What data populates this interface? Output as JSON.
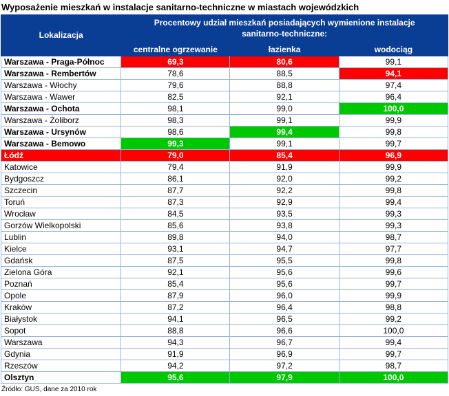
{
  "title": "Wyposażenie mieszkań w instalacje sanitarno-techniczne w miastach wojewódzkich",
  "source_note": "Źródło: GUS, dane za 2010 rok",
  "colors": {
    "header_bg": "#0a3d94",
    "highlight_red": "#ff0000",
    "highlight_green": "#00c800",
    "border": "#95b3d7"
  },
  "table": {
    "location_header": "Lokalizacja",
    "group_header": "Procentowy udział mieszkań posiadających wymienione instalacje sanitarno-techniczne:",
    "columns": [
      "centralne ogrzewanie",
      "łazienka",
      "wodociąg"
    ],
    "rows": [
      {
        "name": "Warszawa - Praga-Północ",
        "bold": true,
        "name_highlight": null,
        "values": [
          "69,3",
          "80,6",
          "99,1"
        ],
        "highlights": [
          "red",
          "red",
          null
        ]
      },
      {
        "name": "Warszawa - Rembertów",
        "bold": true,
        "name_highlight": null,
        "values": [
          "78,6",
          "88,5",
          "94,1"
        ],
        "highlights": [
          null,
          null,
          "red"
        ]
      },
      {
        "name": "Warszawa - Włochy",
        "bold": false,
        "name_highlight": null,
        "values": [
          "79,6",
          "88,8",
          "97,4"
        ],
        "highlights": [
          null,
          null,
          null
        ]
      },
      {
        "name": "Warszawa - Wawer",
        "bold": false,
        "name_highlight": null,
        "values": [
          "82,5",
          "92,1",
          "96,4"
        ],
        "highlights": [
          null,
          null,
          null
        ]
      },
      {
        "name": "Warszawa - Ochota",
        "bold": true,
        "name_highlight": null,
        "values": [
          "98,1",
          "99,0",
          "100,0"
        ],
        "highlights": [
          null,
          null,
          "green"
        ]
      },
      {
        "name": "Warszawa - Żoliborz",
        "bold": false,
        "name_highlight": null,
        "values": [
          "98,3",
          "99,1",
          "99,9"
        ],
        "highlights": [
          null,
          null,
          null
        ]
      },
      {
        "name": "Warszawa - Ursynów",
        "bold": true,
        "name_highlight": null,
        "values": [
          "98,6",
          "99,4",
          "99,8"
        ],
        "highlights": [
          null,
          "green",
          null
        ]
      },
      {
        "name": "Warszawa - Bemowo",
        "bold": true,
        "name_highlight": null,
        "values": [
          "99,3",
          "99,1",
          "99,7"
        ],
        "highlights": [
          "green",
          null,
          null
        ]
      },
      {
        "name": "Łódź",
        "bold": true,
        "name_highlight": "red",
        "values": [
          "79,0",
          "85,4",
          "96,9"
        ],
        "highlights": [
          "red",
          "red",
          "red"
        ]
      },
      {
        "name": "Katowice",
        "bold": false,
        "name_highlight": null,
        "values": [
          "79,4",
          "91,9",
          "99,9"
        ],
        "highlights": [
          null,
          null,
          null
        ]
      },
      {
        "name": "Bydgoszcz",
        "bold": false,
        "name_highlight": null,
        "values": [
          "86,1",
          "92,0",
          "99,2"
        ],
        "highlights": [
          null,
          null,
          null
        ]
      },
      {
        "name": "Szczecin",
        "bold": false,
        "name_highlight": null,
        "values": [
          "87,7",
          "92,2",
          "99,8"
        ],
        "highlights": [
          null,
          null,
          null
        ]
      },
      {
        "name": "Toruń",
        "bold": false,
        "name_highlight": null,
        "values": [
          "87,3",
          "92,9",
          "99,4"
        ],
        "highlights": [
          null,
          null,
          null
        ]
      },
      {
        "name": "Wrocław",
        "bold": false,
        "name_highlight": null,
        "values": [
          "84,5",
          "93,5",
          "99,3"
        ],
        "highlights": [
          null,
          null,
          null
        ]
      },
      {
        "name": "Gorzów Wielkopolski",
        "bold": false,
        "name_highlight": null,
        "values": [
          "85,6",
          "93,8",
          "99,3"
        ],
        "highlights": [
          null,
          null,
          null
        ]
      },
      {
        "name": "Lublin",
        "bold": false,
        "name_highlight": null,
        "values": [
          "89,8",
          "94,0",
          "98,7"
        ],
        "highlights": [
          null,
          null,
          null
        ]
      },
      {
        "name": "Kielce",
        "bold": false,
        "name_highlight": null,
        "values": [
          "93,1",
          "94,7",
          "97,7"
        ],
        "highlights": [
          null,
          null,
          null
        ]
      },
      {
        "name": "Gdańsk",
        "bold": false,
        "name_highlight": null,
        "values": [
          "87,5",
          "95,5",
          "99,8"
        ],
        "highlights": [
          null,
          null,
          null
        ]
      },
      {
        "name": "Zielona Góra",
        "bold": false,
        "name_highlight": null,
        "values": [
          "92,1",
          "95,6",
          "99,6"
        ],
        "highlights": [
          null,
          null,
          null
        ]
      },
      {
        "name": "Poznań",
        "bold": false,
        "name_highlight": null,
        "values": [
          "85,4",
          "95,6",
          "99,7"
        ],
        "highlights": [
          null,
          null,
          null
        ]
      },
      {
        "name": "Opole",
        "bold": false,
        "name_highlight": null,
        "values": [
          "87,9",
          "96,0",
          "99,9"
        ],
        "highlights": [
          null,
          null,
          null
        ]
      },
      {
        "name": "Kraków",
        "bold": false,
        "name_highlight": null,
        "values": [
          "87,2",
          "96,4",
          "98,8"
        ],
        "highlights": [
          null,
          null,
          null
        ]
      },
      {
        "name": "Białystok",
        "bold": false,
        "name_highlight": null,
        "values": [
          "94,1",
          "96,5",
          "99,2"
        ],
        "highlights": [
          null,
          null,
          null
        ]
      },
      {
        "name": "Sopot",
        "bold": false,
        "name_highlight": null,
        "values": [
          "88,8",
          "96,6",
          "100,0"
        ],
        "highlights": [
          null,
          null,
          null
        ]
      },
      {
        "name": "Warszawa",
        "bold": false,
        "name_highlight": null,
        "values": [
          "94,3",
          "96,7",
          "99,4"
        ],
        "highlights": [
          null,
          null,
          null
        ]
      },
      {
        "name": "Gdynia",
        "bold": false,
        "name_highlight": null,
        "values": [
          "91,9",
          "96,9",
          "99,7"
        ],
        "highlights": [
          null,
          null,
          null
        ]
      },
      {
        "name": "Rzeszów",
        "bold": false,
        "name_highlight": null,
        "values": [
          "94,2",
          "97,2",
          "98,7"
        ],
        "highlights": [
          null,
          null,
          null
        ]
      },
      {
        "name": "Olsztyn",
        "bold": true,
        "name_highlight": null,
        "values": [
          "95,6",
          "97,9",
          "100,0"
        ],
        "highlights": [
          "green",
          "green",
          "green"
        ]
      }
    ]
  },
  "chart_data": {
    "type": "table",
    "title": "Wyposażenie mieszkań w instalacje sanitarno-techniczne w miastach wojewódzkich",
    "categories": [
      "Warszawa - Praga-Północ",
      "Warszawa - Rembertów",
      "Warszawa - Włochy",
      "Warszawa - Wawer",
      "Warszawa - Ochota",
      "Warszawa - Żoliborz",
      "Warszawa - Ursynów",
      "Warszawa - Bemowo",
      "Łódź",
      "Katowice",
      "Bydgoszcz",
      "Szczecin",
      "Toruń",
      "Wrocław",
      "Gorzów Wielkopolski",
      "Lublin",
      "Kielce",
      "Gdańsk",
      "Zielona Góra",
      "Poznań",
      "Opole",
      "Kraków",
      "Białystok",
      "Sopot",
      "Warszawa",
      "Gdynia",
      "Rzeszów",
      "Olsztyn"
    ],
    "series": [
      {
        "name": "centralne ogrzewanie",
        "values": [
          69.3,
          78.6,
          79.6,
          82.5,
          98.1,
          98.3,
          98.6,
          99.3,
          79.0,
          79.4,
          86.1,
          87.7,
          87.3,
          84.5,
          85.6,
          89.8,
          93.1,
          87.5,
          92.1,
          85.4,
          87.9,
          87.2,
          94.1,
          88.8,
          94.3,
          91.9,
          94.2,
          95.6
        ]
      },
      {
        "name": "łazienka",
        "values": [
          80.6,
          88.5,
          88.8,
          92.1,
          99.0,
          99.1,
          99.4,
          99.1,
          85.4,
          91.9,
          92.0,
          92.2,
          92.9,
          93.5,
          93.8,
          94.0,
          94.7,
          95.5,
          95.6,
          95.6,
          96.0,
          96.4,
          96.5,
          96.6,
          96.7,
          96.9,
          97.2,
          97.9
        ]
      },
      {
        "name": "wodociąg",
        "values": [
          99.1,
          94.1,
          97.4,
          96.4,
          100.0,
          99.9,
          99.8,
          99.7,
          96.9,
          99.9,
          99.2,
          99.8,
          99.4,
          99.3,
          99.3,
          98.7,
          97.7,
          99.8,
          99.6,
          99.7,
          99.9,
          98.8,
          99.2,
          100.0,
          99.4,
          99.7,
          98.7,
          100.0
        ]
      }
    ],
    "units": "%",
    "source": "Źródło: GUS, dane za 2010 rok"
  }
}
